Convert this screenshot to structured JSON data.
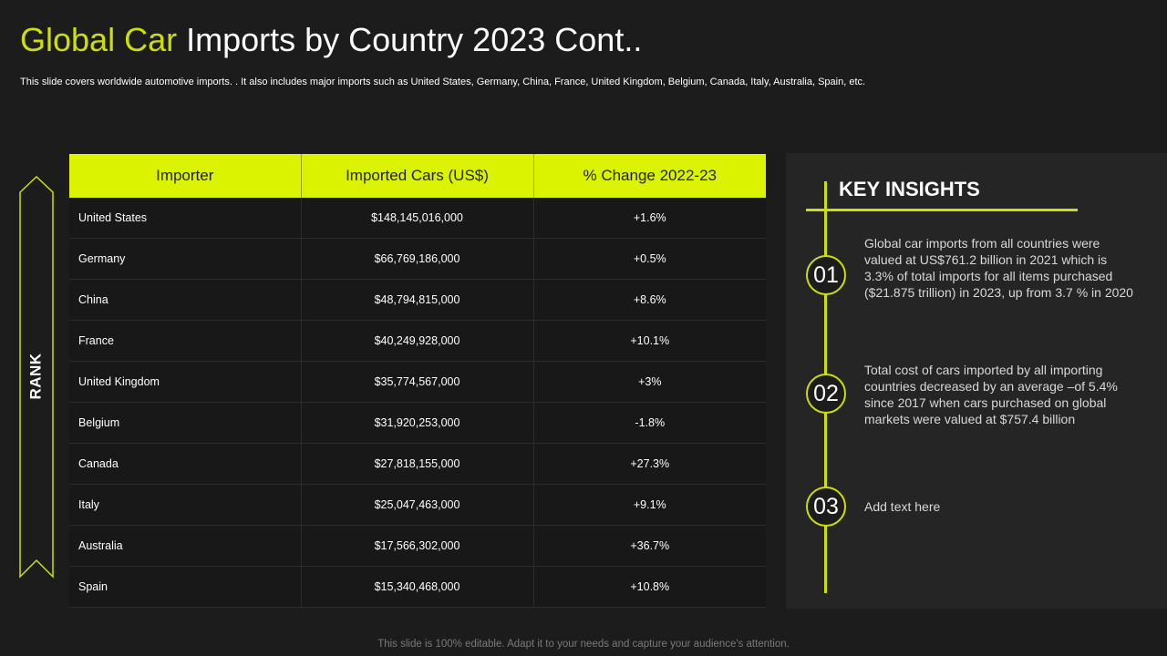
{
  "header": {
    "title_accent": "Global Car",
    "title_rest": " Imports by Country 2023 Cont..",
    "subtitle": "This slide covers worldwide automotive imports. . It also includes major imports such as United States, Germany, China, France, United Kingdom, Belgium, Canada, Italy, Australia, Spain, etc."
  },
  "rank_label": "RANK",
  "table": {
    "headers": [
      "Importer",
      "Imported Cars (US$)",
      "% Change 2022-23"
    ],
    "rows": [
      [
        "United States",
        "$148,145,016,000",
        "+1.6%"
      ],
      [
        "Germany",
        "$66,769,186,000",
        "+0.5%"
      ],
      [
        "China",
        "$48,794,815,000",
        "+8.6%"
      ],
      [
        "France",
        "$40,249,928,000",
        "+10.1%"
      ],
      [
        "United Kingdom",
        "$35,774,567,000",
        "+3%"
      ],
      [
        "Belgium",
        "$31,920,253,000",
        "-1.8%"
      ],
      [
        "Canada",
        "$27,818,155,000",
        "+27.3%"
      ],
      [
        "Italy",
        "$25,047,463,000",
        "+9.1%"
      ],
      [
        "Australia",
        "$17,566,302,000",
        "+36.7%"
      ],
      [
        "Spain",
        "$15,340,468,000",
        "+10.8%"
      ]
    ]
  },
  "insights": {
    "title": "KEY INSIGHTS",
    "items": [
      {
        "number": "01",
        "text": "Global car imports from all countries were valued at US$761.2 billion in 2021 which is 3.3% of total imports for all items purchased ($21.875 trillion) in 2023, up from 3.7 % in 2020"
      },
      {
        "number": "02",
        "text": "Total cost of cars imported by all importing countries decreased by an average –of 5.4% since 2017 when cars purchased on global markets were valued at $757.4 billion"
      },
      {
        "number": "03",
        "text": "Add text here"
      }
    ]
  },
  "footer": "This slide is 100% editable. Adapt it to your needs and capture your audience's attention.",
  "colors": {
    "accent": "#cde000",
    "header_fill": "#dbf200",
    "background": "#1c1c1c",
    "panel": "#252525"
  }
}
